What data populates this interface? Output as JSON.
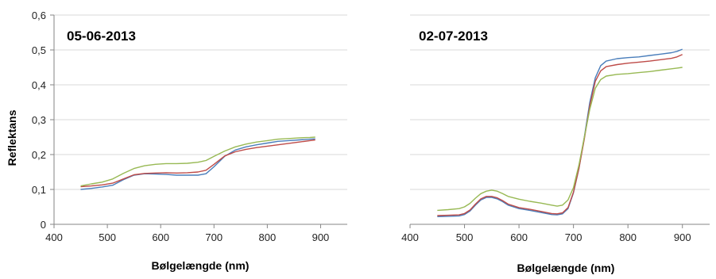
{
  "chart_data": [
    {
      "type": "line",
      "title": "05-06-2013",
      "xlabel": "Bølgelængde (nm)",
      "ylabel": "Reflektans",
      "xlim": [
        400,
        950
      ],
      "ylim": [
        0,
        0.6
      ],
      "xticks": [
        "400",
        "500",
        "600",
        "700",
        "800",
        "900"
      ],
      "yticks": [
        "0",
        "0,1",
        "0,2",
        "0,3",
        "0,4",
        "0,5",
        "0,6"
      ],
      "grid": true,
      "legend": "none",
      "series": [
        {
          "color": "#4a7ebb",
          "x": [
            450,
            470,
            490,
            510,
            530,
            550,
            570,
            590,
            610,
            630,
            650,
            670,
            685,
            700,
            720,
            740,
            760,
            780,
            800,
            820,
            840,
            860,
            880,
            890
          ],
          "y": [
            0.1,
            0.103,
            0.107,
            0.112,
            0.128,
            0.141,
            0.145,
            0.144,
            0.143,
            0.141,
            0.141,
            0.141,
            0.145,
            0.165,
            0.195,
            0.213,
            0.222,
            0.228,
            0.233,
            0.238,
            0.24,
            0.242,
            0.244,
            0.245
          ]
        },
        {
          "color": "#be4b48",
          "x": [
            450,
            470,
            490,
            510,
            530,
            550,
            570,
            590,
            610,
            630,
            650,
            670,
            685,
            700,
            720,
            740,
            760,
            780,
            800,
            820,
            840,
            860,
            880,
            890
          ],
          "y": [
            0.108,
            0.11,
            0.113,
            0.118,
            0.13,
            0.142,
            0.146,
            0.147,
            0.148,
            0.147,
            0.148,
            0.15,
            0.155,
            0.172,
            0.196,
            0.208,
            0.215,
            0.22,
            0.224,
            0.228,
            0.232,
            0.236,
            0.24,
            0.242
          ]
        },
        {
          "color": "#98b954",
          "x": [
            450,
            470,
            490,
            510,
            530,
            550,
            570,
            590,
            610,
            630,
            650,
            670,
            685,
            700,
            720,
            740,
            760,
            780,
            800,
            820,
            840,
            860,
            880,
            890
          ],
          "y": [
            0.11,
            0.116,
            0.121,
            0.13,
            0.146,
            0.16,
            0.168,
            0.172,
            0.174,
            0.174,
            0.175,
            0.178,
            0.183,
            0.195,
            0.21,
            0.222,
            0.23,
            0.236,
            0.24,
            0.244,
            0.246,
            0.248,
            0.249,
            0.25
          ]
        }
      ]
    },
    {
      "type": "line",
      "title": "02-07-2013",
      "xlabel": "Bølgelængde (nm)",
      "ylabel": "",
      "xlim": [
        400,
        950
      ],
      "ylim": [
        0,
        0.6
      ],
      "xticks": [
        "400",
        "500",
        "600",
        "700",
        "800",
        "900"
      ],
      "yticks": [],
      "grid": true,
      "legend": "none",
      "series": [
        {
          "color": "#4a7ebb",
          "x": [
            450,
            470,
            490,
            500,
            510,
            520,
            530,
            540,
            550,
            560,
            570,
            580,
            600,
            620,
            640,
            660,
            670,
            680,
            690,
            700,
            710,
            720,
            730,
            740,
            750,
            760,
            780,
            800,
            820,
            840,
            860,
            880,
            890,
            900
          ],
          "y": [
            0.022,
            0.023,
            0.024,
            0.028,
            0.038,
            0.055,
            0.07,
            0.077,
            0.077,
            0.073,
            0.065,
            0.055,
            0.045,
            0.04,
            0.034,
            0.028,
            0.027,
            0.03,
            0.045,
            0.09,
            0.16,
            0.25,
            0.35,
            0.42,
            0.455,
            0.468,
            0.475,
            0.478,
            0.48,
            0.484,
            0.488,
            0.492,
            0.496,
            0.502
          ]
        },
        {
          "color": "#be4b48",
          "x": [
            450,
            470,
            490,
            500,
            510,
            520,
            530,
            540,
            550,
            560,
            570,
            580,
            600,
            620,
            640,
            660,
            670,
            680,
            690,
            700,
            710,
            720,
            730,
            740,
            750,
            760,
            780,
            800,
            820,
            840,
            860,
            880,
            890,
            900
          ],
          "y": [
            0.025,
            0.026,
            0.027,
            0.031,
            0.041,
            0.058,
            0.073,
            0.08,
            0.08,
            0.076,
            0.068,
            0.058,
            0.048,
            0.043,
            0.037,
            0.031,
            0.03,
            0.033,
            0.048,
            0.092,
            0.16,
            0.245,
            0.34,
            0.41,
            0.44,
            0.452,
            0.458,
            0.462,
            0.465,
            0.468,
            0.472,
            0.476,
            0.48,
            0.487
          ]
        },
        {
          "color": "#98b954",
          "x": [
            450,
            470,
            490,
            500,
            510,
            520,
            530,
            540,
            550,
            560,
            570,
            580,
            600,
            620,
            640,
            660,
            670,
            680,
            690,
            700,
            710,
            720,
            730,
            740,
            750,
            760,
            780,
            800,
            820,
            840,
            860,
            880,
            890,
            900
          ],
          "y": [
            0.04,
            0.042,
            0.045,
            0.05,
            0.06,
            0.075,
            0.088,
            0.095,
            0.098,
            0.095,
            0.088,
            0.08,
            0.072,
            0.066,
            0.061,
            0.055,
            0.052,
            0.055,
            0.07,
            0.105,
            0.17,
            0.25,
            0.33,
            0.39,
            0.415,
            0.425,
            0.43,
            0.432,
            0.435,
            0.438,
            0.442,
            0.446,
            0.448,
            0.45
          ]
        }
      ]
    }
  ]
}
